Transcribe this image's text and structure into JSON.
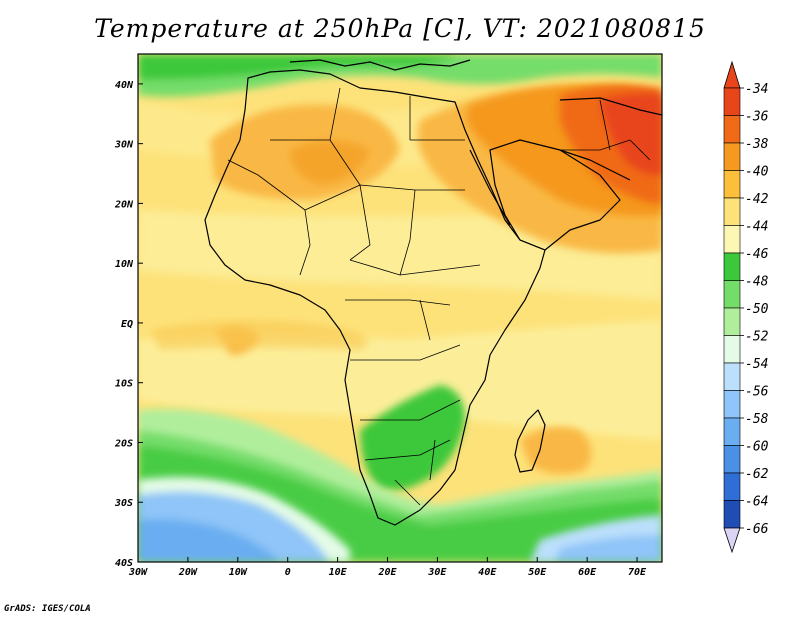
{
  "title": "Temperature at 250hPa [C], VT: 2021080815",
  "credit": "GrADS: IGES/COLA",
  "map": {
    "lon_range": [
      -30,
      75
    ],
    "lat_range": [
      -40,
      45
    ],
    "lon_ticks": [
      {
        "value": -30,
        "label": "30W"
      },
      {
        "value": -20,
        "label": "20W"
      },
      {
        "value": -10,
        "label": "10W"
      },
      {
        "value": 0,
        "label": "0"
      },
      {
        "value": 10,
        "label": "10E"
      },
      {
        "value": 20,
        "label": "20E"
      },
      {
        "value": 30,
        "label": "30E"
      },
      {
        "value": 40,
        "label": "40E"
      },
      {
        "value": 50,
        "label": "50E"
      },
      {
        "value": 60,
        "label": "60E"
      },
      {
        "value": 70,
        "label": "70E"
      }
    ],
    "lat_ticks": [
      {
        "value": 40,
        "label": "40N"
      },
      {
        "value": 30,
        "label": "30N"
      },
      {
        "value": 20,
        "label": "20N"
      },
      {
        "value": 10,
        "label": "10N"
      },
      {
        "value": 0,
        "label": "EQ"
      },
      {
        "value": -10,
        "label": "10S"
      },
      {
        "value": -20,
        "label": "20S"
      },
      {
        "value": -30,
        "label": "30S"
      },
      {
        "value": -40,
        "label": "40S"
      }
    ]
  },
  "colorbar": {
    "levels": [
      {
        "label": "-34",
        "color": "#e8451b"
      },
      {
        "label": "-36",
        "color": "#f06a18"
      },
      {
        "label": "-38",
        "color": "#f59a1e"
      },
      {
        "label": "-40",
        "color": "#fbbf3c"
      },
      {
        "label": "-42",
        "color": "#fde27a"
      },
      {
        "label": "-44",
        "color": "#fcf8b4"
      },
      {
        "label": "-46",
        "color": "#3dc83b"
      },
      {
        "label": "-48",
        "color": "#74dd6a"
      },
      {
        "label": "-50",
        "color": "#b0ee9c"
      },
      {
        "label": "-52",
        "color": "#e4fbe7"
      },
      {
        "label": "-54",
        "color": "#bcdffc"
      },
      {
        "label": "-56",
        "color": "#8fc5f8"
      },
      {
        "label": "-58",
        "color": "#6aaef1"
      },
      {
        "label": "-60",
        "color": "#4a90e5"
      },
      {
        "label": "-62",
        "color": "#2e6ed6"
      },
      {
        "label": "-64",
        "color": "#1f4db4"
      },
      {
        "label": "-66",
        "color": "#131f7c"
      }
    ],
    "top_triangle_color": "#e8451b",
    "bottom_triangle_color": "#dcd4f4"
  }
}
